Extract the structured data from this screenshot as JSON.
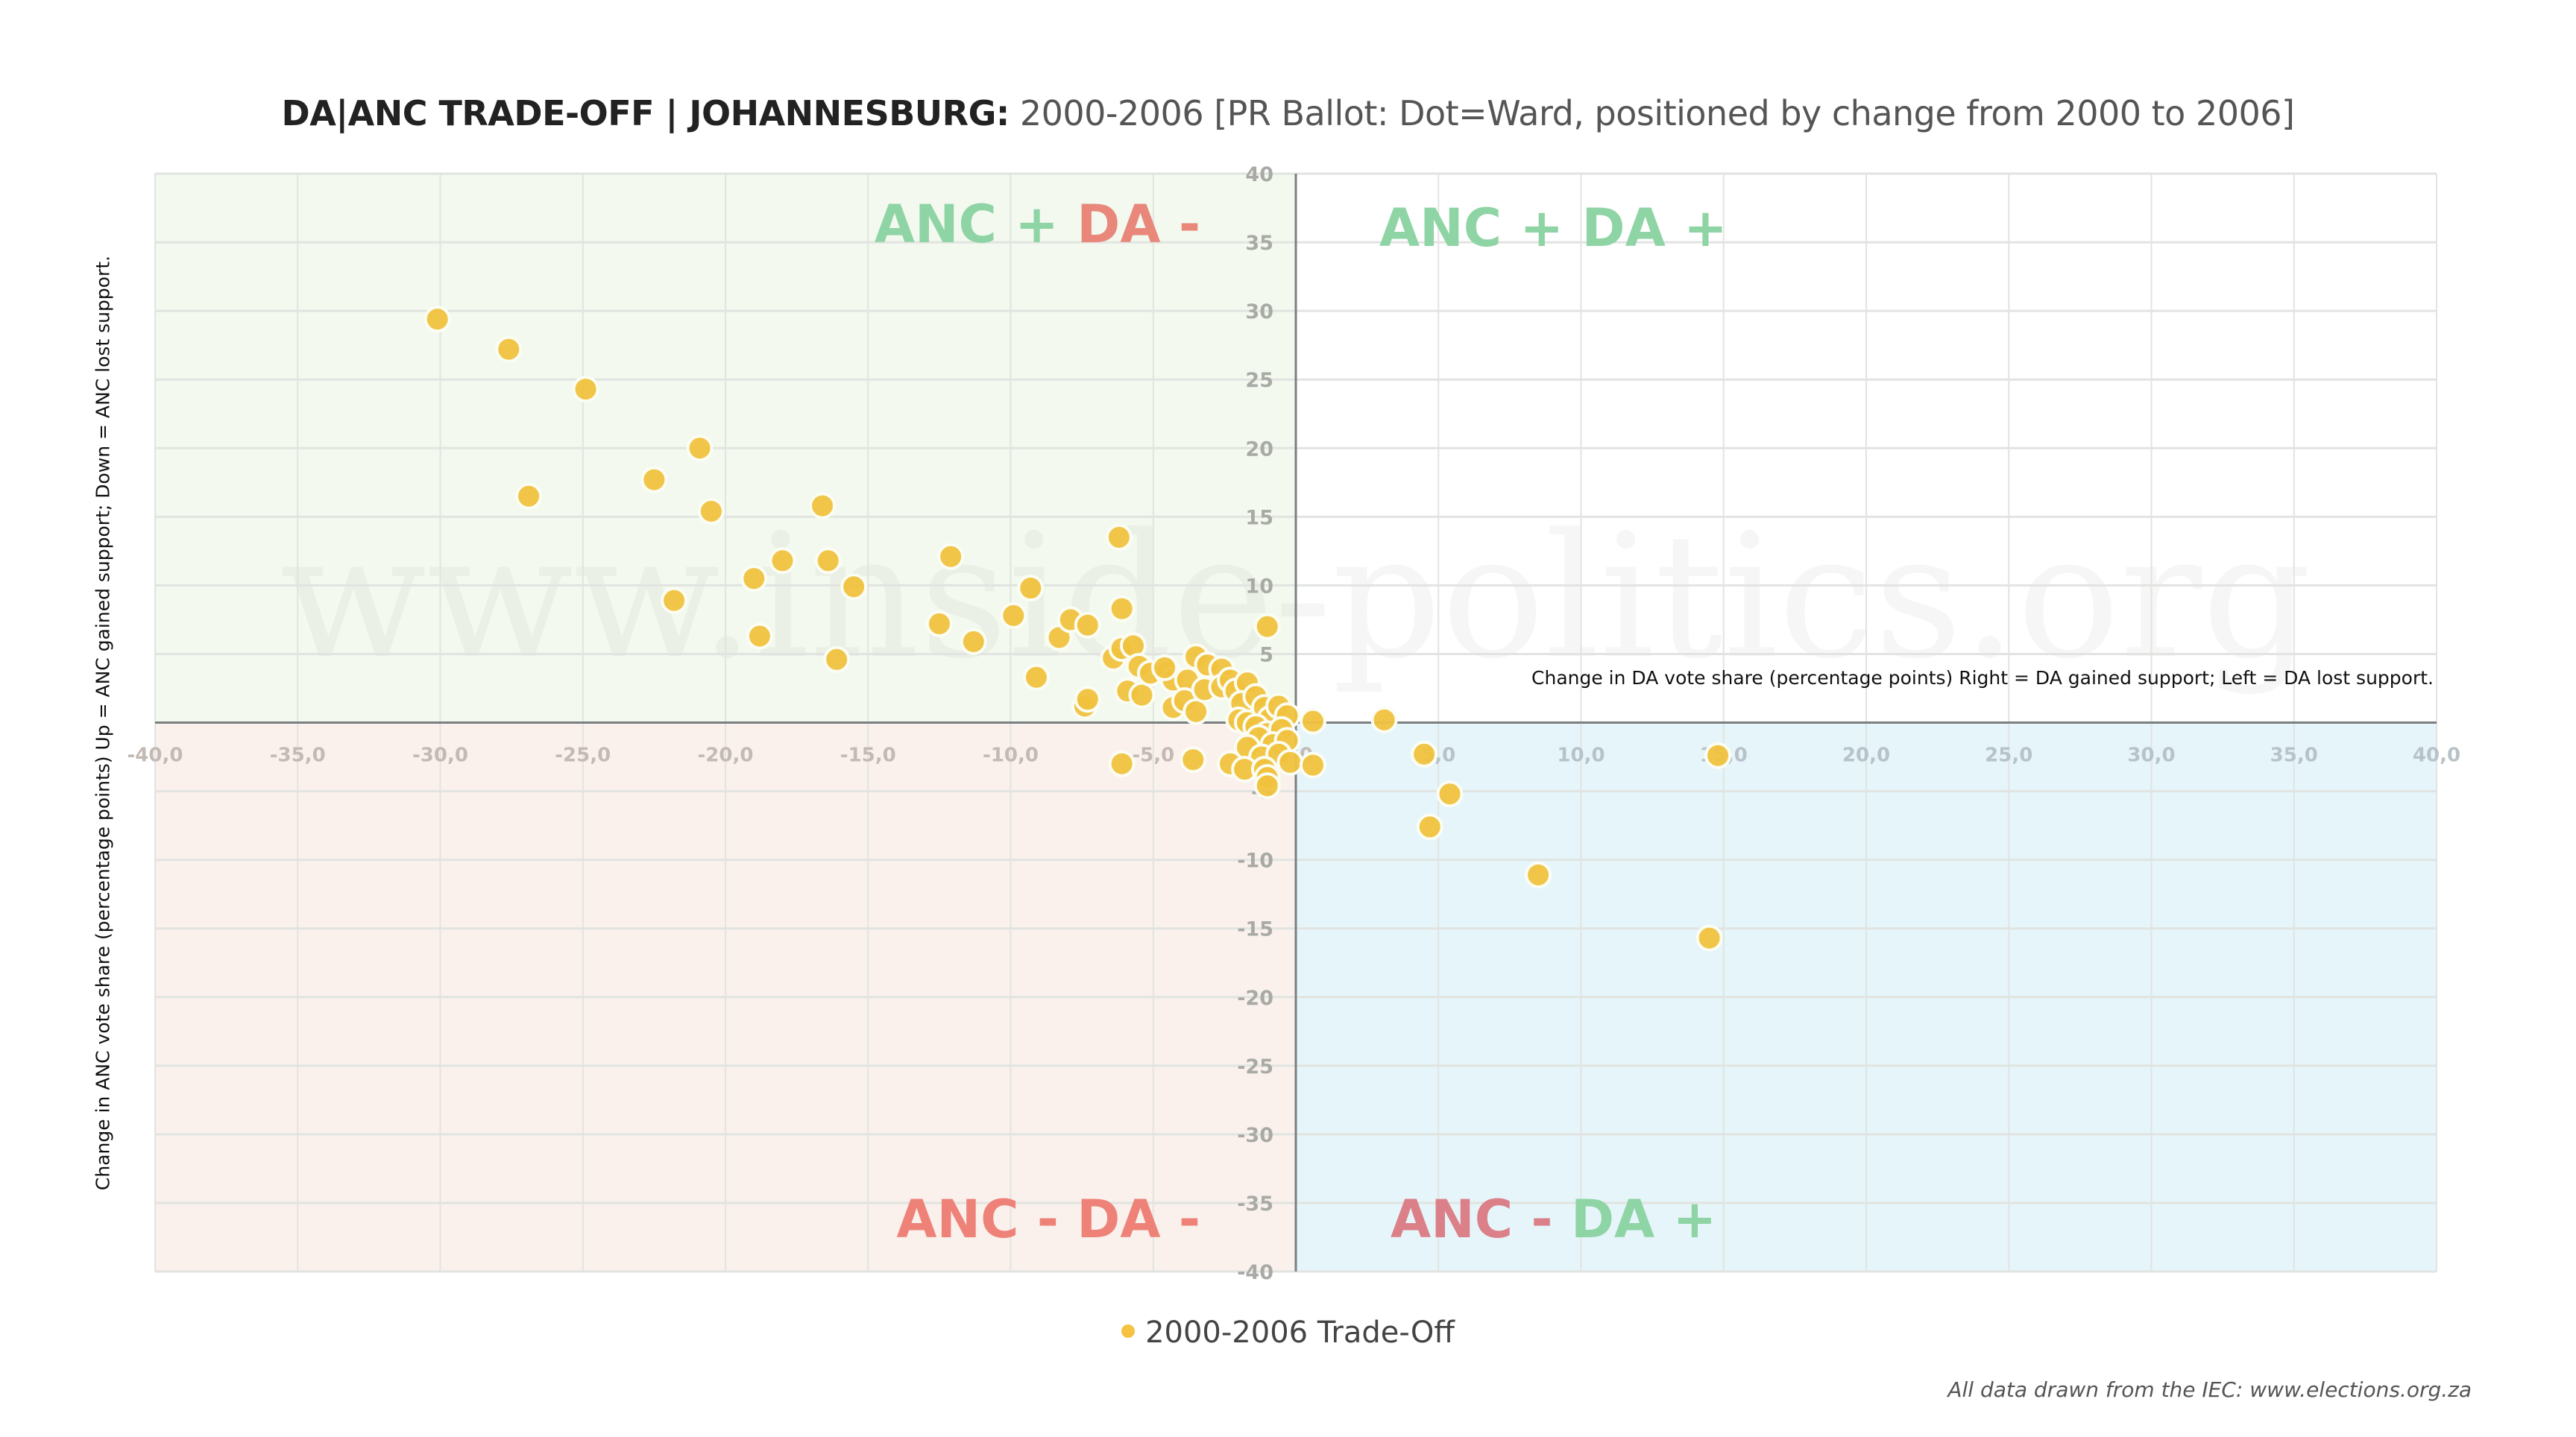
{
  "title": {
    "bold": "DA|ANC TRADE-OFF | JOHANNESBURG:",
    "regular": " 2000-2006 [PR Ballot: Dot=Ward, positioned by change from 2000 to 2006]"
  },
  "watermark": "www.inside-politics.org",
  "quadrant_labels": {
    "top_left": [
      {
        "text": "ANC + ",
        "color": "#8fd4a5"
      },
      {
        "text": "DA -",
        "color": "#e8877a"
      }
    ],
    "top_right": [
      {
        "text": "ANC + DA +",
        "color": "#8fd4a5"
      }
    ],
    "bottom_left": [
      {
        "text": "ANC - DA -",
        "color": "#ee8278"
      }
    ],
    "bottom_right": [
      {
        "text": "ANC - ",
        "color": "#db8088"
      },
      {
        "text": "DA +",
        "color": "#8fd4a5"
      }
    ]
  },
  "quadrant_colors": {
    "top_left": "#f3f9ee",
    "top_right": "#ffffff",
    "bottom_left": "#faf1ec",
    "bottom_right": "#e6f5fa"
  },
  "legend": {
    "label": "2000-2006 Trade-Off",
    "color": "#f5c242"
  },
  "source": "All data drawn from the IEC: www.elections.org.za",
  "chart_data": {
    "type": "scatter",
    "title": "DA|ANC TRADE-OFF | JOHANNESBURG: 2000-2006 [PR Ballot: Dot=Ward, positioned by change from 2000 to 2006]",
    "xlabel": "Change in DA vote share (percentage points) Right = DA gained support; Left = DA lost support.",
    "ylabel": "Change in ANC vote share (percentage points) Up = ANC gained support; Down = ANC lost support.",
    "xlim": [
      -40,
      40
    ],
    "ylim": [
      -40,
      40
    ],
    "xticks": [
      "-40,0",
      "-35,0",
      "-30,0",
      "-25,0",
      "-20,0",
      "-15,0",
      "-10,0",
      "-5,0",
      "0,0",
      "5,0",
      "10,0",
      "15,0",
      "20,0",
      "25,0",
      "30,0",
      "35,0",
      "40,0"
    ],
    "xtick_values": [
      -40,
      -35,
      -30,
      -25,
      -20,
      -15,
      -10,
      -5,
      0,
      5,
      10,
      15,
      20,
      25,
      30,
      35,
      40
    ],
    "yticks": [
      "40",
      "35",
      "30",
      "25",
      "20",
      "15",
      "10",
      "5",
      "0",
      "-5",
      "-10",
      "-15",
      "-20",
      "-25",
      "-30",
      "-35",
      "-40"
    ],
    "ytick_values": [
      40,
      35,
      30,
      25,
      20,
      15,
      10,
      5,
      0,
      -5,
      -10,
      -15,
      -20,
      -25,
      -30,
      -35,
      -40
    ],
    "grid": true,
    "legend_position": "bottom-center",
    "series": [
      {
        "name": "2000-2006 Trade-Off",
        "color": "#f0c23e",
        "points": [
          [
            -30.1,
            29.4
          ],
          [
            -27.6,
            27.2
          ],
          [
            -24.9,
            24.3
          ],
          [
            -20.9,
            20.0
          ],
          [
            -26.9,
            16.5
          ],
          [
            -22.5,
            17.7
          ],
          [
            -20.5,
            15.4
          ],
          [
            -16.6,
            15.8
          ],
          [
            -21.8,
            8.9
          ],
          [
            -19.0,
            10.5
          ],
          [
            -18.0,
            11.8
          ],
          [
            -16.4,
            11.8
          ],
          [
            -15.5,
            9.9
          ],
          [
            -18.8,
            6.3
          ],
          [
            -16.1,
            4.6
          ],
          [
            -12.1,
            12.1
          ],
          [
            -12.5,
            7.2
          ],
          [
            -11.3,
            5.9
          ],
          [
            -9.9,
            7.8
          ],
          [
            -9.3,
            9.8
          ],
          [
            -9.1,
            3.3
          ],
          [
            -8.3,
            6.2
          ],
          [
            -7.4,
            1.2
          ],
          [
            -7.3,
            1.7
          ],
          [
            -7.9,
            7.5
          ],
          [
            -7.3,
            7.1
          ],
          [
            -6.2,
            13.5
          ],
          [
            -6.1,
            8.3
          ],
          [
            -1.0,
            7.0
          ],
          [
            -6.4,
            4.7
          ],
          [
            -6.1,
            5.4
          ],
          [
            -5.7,
            5.6
          ],
          [
            -5.5,
            4.1
          ],
          [
            -5.9,
            2.3
          ],
          [
            -5.4,
            2.0
          ],
          [
            -5.1,
            3.6
          ],
          [
            -4.5,
            3.7
          ],
          [
            -4.3,
            3.1
          ],
          [
            -4.6,
            4.0
          ],
          [
            -3.5,
            4.8
          ],
          [
            -3.8,
            3.1
          ],
          [
            -3.1,
            4.2
          ],
          [
            -4.3,
            1.1
          ],
          [
            -3.9,
            1.6
          ],
          [
            -3.5,
            0.8
          ],
          [
            -3.2,
            2.4
          ],
          [
            -2.6,
            3.9
          ],
          [
            -2.6,
            2.6
          ],
          [
            -2.3,
            3.1
          ],
          [
            -2.1,
            2.3
          ],
          [
            -1.7,
            2.9
          ],
          [
            -1.9,
            1.4
          ],
          [
            -2.0,
            0.2
          ],
          [
            -1.7,
            0.0
          ],
          [
            -1.4,
            1.9
          ],
          [
            -1.1,
            1.1
          ],
          [
            -0.9,
            0.3
          ],
          [
            -0.6,
            1.2
          ],
          [
            -0.3,
            0.5
          ],
          [
            -1.4,
            -0.3
          ],
          [
            -1.0,
            -0.8
          ],
          [
            -0.5,
            -0.5
          ],
          [
            -1.3,
            -1.1
          ],
          [
            -0.8,
            -1.6
          ],
          [
            -0.3,
            -1.3
          ],
          [
            -1.7,
            -1.8
          ],
          [
            -1.2,
            -2.5
          ],
          [
            -0.6,
            -2.3
          ],
          [
            -0.2,
            -2.9
          ],
          [
            -2.3,
            -3.0
          ],
          [
            -1.8,
            -3.4
          ],
          [
            -1.1,
            -3.4
          ],
          [
            -1.0,
            -4.0
          ],
          [
            -1.0,
            -4.6
          ],
          [
            0.6,
            0.1
          ],
          [
            0.6,
            -3.1
          ],
          [
            -6.1,
            -3.0
          ],
          [
            -3.6,
            -2.7
          ],
          [
            3.1,
            0.2
          ],
          [
            4.5,
            -2.3
          ],
          [
            5.4,
            -5.2
          ],
          [
            4.7,
            -7.6
          ],
          [
            8.5,
            -11.1
          ],
          [
            14.8,
            -2.4
          ],
          [
            14.5,
            -15.7
          ]
        ]
      }
    ]
  }
}
